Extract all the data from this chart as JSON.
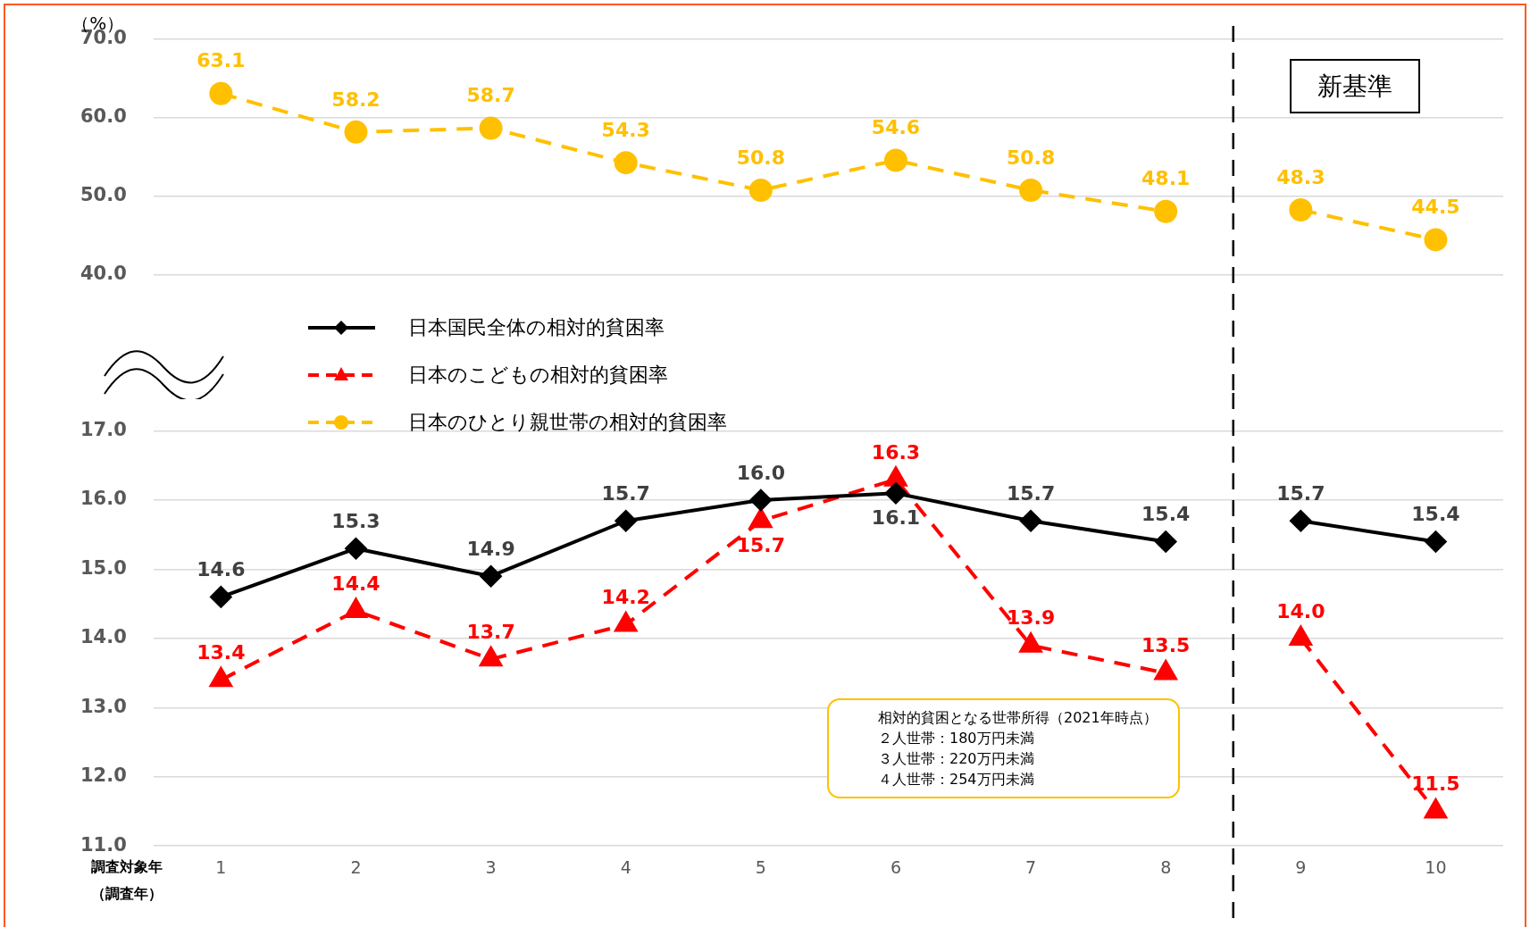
{
  "chart_data": [
    {
      "type": "line",
      "ylabel": "（%）",
      "x": [
        1,
        2,
        3,
        4,
        5,
        6,
        7,
        8,
        8.5,
        9,
        10
      ],
      "xlim": [
        0.5,
        10.5
      ],
      "xticks": [
        1,
        2,
        3,
        4,
        5,
        6,
        7,
        8,
        9,
        10
      ],
      "ylim": [
        40,
        70
      ],
      "yticks": [
        {
          "value": 40,
          "label": "40.0"
        },
        {
          "value": 50,
          "label": "50.0"
        },
        {
          "value": 60,
          "label": "60.0"
        },
        {
          "value": 70,
          "label": "70.0"
        }
      ],
      "tick_labels": "y",
      "series": [
        {
          "name": "日本のひとり親世帯の相対的貧困率",
          "color": "#ffc000",
          "marker": "circle",
          "line_style": "dashed",
          "values": [
            63.1,
            58.2,
            58.7,
            54.3,
            50.8,
            54.6,
            50.8,
            48.1,
            null,
            48.3,
            44.5
          ],
          "value_labels": [
            "63.1",
            "58.2",
            "58.7",
            "54.3",
            "50.8",
            "54.6",
            "50.8",
            "48.1",
            null,
            "48.3",
            "44.5"
          ]
        }
      ],
      "ref_lines": [
        {
          "axis": "x",
          "value": 8.5,
          "color": "#000000",
          "line_style": "dashed"
        }
      ],
      "annotations": [
        "新基準"
      ],
      "grid": "y",
      "legend": "bottom left"
    },
    {
      "type": "line",
      "xlabel": "調査対象年（調査年）",
      "x": [
        1,
        2,
        3,
        4,
        5,
        6,
        7,
        8,
        8.5,
        9,
        10
      ],
      "xlim": [
        0.5,
        10.5
      ],
      "xticks": [
        1,
        2,
        3,
        4,
        5,
        6,
        7,
        8,
        9,
        10
      ],
      "ylim": [
        11,
        17
      ],
      "yticks": [
        {
          "value": 11,
          "label": "11.0"
        },
        {
          "value": 12,
          "label": "12.0"
        },
        {
          "value": 13,
          "label": "13.0"
        },
        {
          "value": 14,
          "label": "14.0"
        },
        {
          "value": 15,
          "label": "15.0"
        },
        {
          "value": 16,
          "label": "16.0"
        },
        {
          "value": 17,
          "label": "17.0"
        }
      ],
      "series": [
        {
          "name": "日本国民全体の相対的貧困率",
          "color": "#000000",
          "marker": "diamond",
          "line_style": "solid",
          "values": [
            14.6,
            15.3,
            14.9,
            15.7,
            16.0,
            16.1,
            15.7,
            15.4,
            null,
            15.7,
            15.4
          ],
          "value_labels": [
            "14.6",
            "15.3",
            "14.9",
            "15.7",
            "16.0",
            "16.1",
            "15.7",
            "15.4",
            null,
            "15.7",
            "15.4"
          ]
        },
        {
          "name": "日本のこどもの相対的貧困率",
          "color": "#ff0000",
          "marker": "triangle",
          "line_style": "dashed",
          "values": [
            13.4,
            14.4,
            13.7,
            14.2,
            15.7,
            16.3,
            13.9,
            13.5,
            null,
            14.0,
            11.5
          ],
          "value_labels": [
            "13.4",
            "14.4",
            "13.7",
            "14.2",
            "15.7",
            "16.3",
            "13.9",
            "13.5",
            null,
            "14.0",
            "11.5"
          ]
        }
      ],
      "ref_lines": [
        {
          "axis": "x",
          "value": 8.5,
          "color": "#000000",
          "line_style": "dashed"
        }
      ],
      "annotations": [
        "相対的貧困となる世帯所得（2021年時点）",
        "２人世帯：180万円未満",
        "３人世帯：220万円未満",
        "４人世帯：254万円未満"
      ],
      "grid": "y",
      "legend": "top left"
    }
  ]
}
